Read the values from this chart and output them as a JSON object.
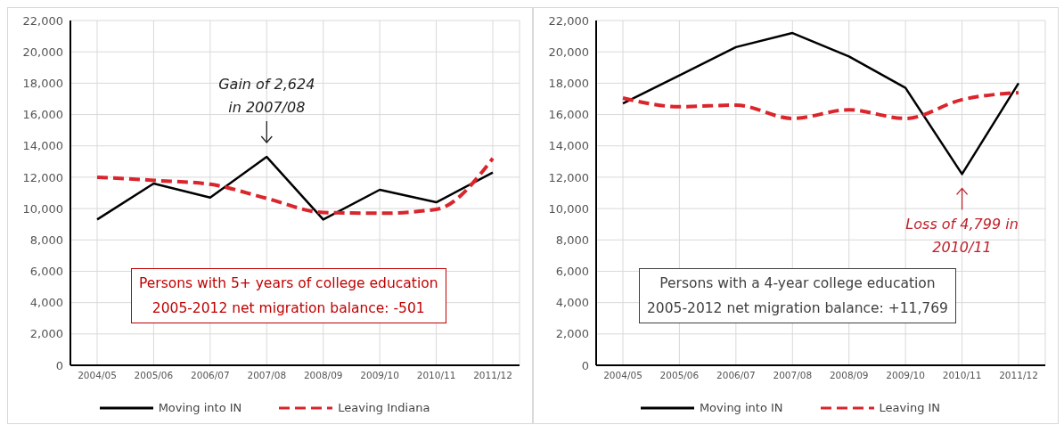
{
  "chart_data": [
    {
      "type": "line",
      "categories": [
        "2004/05",
        "2005/06",
        "2006/07",
        "2007/08",
        "2008/09",
        "2009/10",
        "2010/11",
        "2011/12"
      ],
      "series": [
        {
          "name": "Moving into IN",
          "color": "#000000",
          "values": [
            9300,
            11600,
            10700,
            13300,
            9300,
            11200,
            10400,
            12300
          ]
        },
        {
          "name": "Leaving Indiana",
          "color": "#d9252b",
          "line_style": "dashed",
          "values": [
            12000,
            11800,
            11550,
            10650,
            9750,
            9700,
            9950,
            13200
          ]
        }
      ],
      "ylim": [
        0,
        22000
      ],
      "yticks": [
        0,
        {
          "value": 2000,
          "label": "2,000"
        },
        {
          "value": 4000,
          "label": "4,000"
        },
        {
          "value": 6000,
          "label": "6,000"
        },
        {
          "value": 8000,
          "label": "8,000"
        },
        {
          "value": 10000,
          "label": "10,000"
        },
        {
          "value": 12000,
          "label": "12,000"
        },
        {
          "value": 14000,
          "label": "14,000"
        },
        {
          "value": 16000,
          "label": "16,000"
        },
        {
          "value": 18000,
          "label": "18,000"
        },
        {
          "value": 20000,
          "label": "20,000"
        },
        {
          "value": 22000,
          "label": "22,000"
        }
      ],
      "grid": true,
      "legend": "bottom",
      "marker": "none",
      "annotations": [
        {
          "text": "Gain of 2,624\nin 2007/08",
          "x": "2007/08",
          "y": 13300
        },
        "Persons with 5+ years of college education\n2005-2012 net migration balance: -501"
      ]
    },
    {
      "type": "line",
      "categories": [
        "2004/05",
        "2005/06",
        "2006/07",
        "2007/08",
        "2008/09",
        "2009/10",
        "2010/11",
        "2011/12"
      ],
      "series": [
        {
          "name": "Moving into IN",
          "color": "#000000",
          "values": [
            16700,
            18500,
            20300,
            21200,
            19700,
            17700,
            12200,
            18000
          ]
        },
        {
          "name": "Leaving IN",
          "color": "#d9252b",
          "line_style": "dashed",
          "values": [
            17050,
            16500,
            16600,
            15750,
            16300,
            15750,
            16950,
            17400
          ]
        }
      ],
      "ylim": [
        0,
        22000
      ],
      "yticks": [
        0,
        {
          "value": 2000,
          "label": "2,000"
        },
        {
          "value": 4000,
          "label": "4,000"
        },
        {
          "value": 6000,
          "label": "6,000"
        },
        {
          "value": 8000,
          "label": "8,000"
        },
        {
          "value": 10000,
          "label": "10,000"
        },
        {
          "value": 12000,
          "label": "12,000"
        },
        {
          "value": 14000,
          "label": "14,000"
        },
        {
          "value": 16000,
          "label": "16,000"
        },
        {
          "value": 18000,
          "label": "18,000"
        },
        {
          "value": 20000,
          "label": "20,000"
        },
        {
          "value": 22000,
          "label": "22,000"
        }
      ],
      "grid": true,
      "legend": "bottom",
      "marker": "none",
      "annotations": [
        {
          "text": "Loss of 4,799  in\n2010/11",
          "x": "2010/11",
          "y": 12200
        },
        "Persons with a 4-year college education\n2005-2012 net migration balance: +11,769"
      ]
    }
  ]
}
